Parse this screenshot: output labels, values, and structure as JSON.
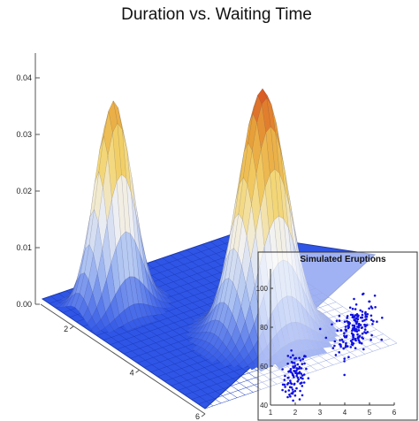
{
  "chart_data": [
    {
      "type": "surface",
      "title": "Duration vs. Waiting Time",
      "z_ticks": [
        "0.00",
        "0.01",
        "0.02",
        "0.03",
        "0.04"
      ],
      "x_ticks": [
        "2",
        "4",
        "6"
      ],
      "zlim": [
        0,
        0.045
      ],
      "peaks": [
        {
          "x": 2.0,
          "y": 54,
          "z": 0.036
        },
        {
          "x": 4.4,
          "y": 80,
          "z": 0.043
        }
      ],
      "colormap": [
        "#2f55e6",
        "#a9c0f2",
        "#f2f2f2",
        "#f3d36a",
        "#e8a23a",
        "#d43a18"
      ]
    },
    {
      "type": "scatter",
      "title": "Simulated Eruptions",
      "xlim": [
        1,
        6
      ],
      "ylim": [
        40,
        110
      ],
      "x_ticks": [
        "1",
        "2",
        "3",
        "4",
        "5",
        "6"
      ],
      "y_ticks": [
        "40",
        "60",
        "80",
        "100"
      ],
      "point_color": "#1010e0",
      "clusters": [
        {
          "x": 2.0,
          "y": 54,
          "count": 100
        },
        {
          "x": 4.4,
          "y": 80,
          "count": 170
        }
      ]
    }
  ]
}
